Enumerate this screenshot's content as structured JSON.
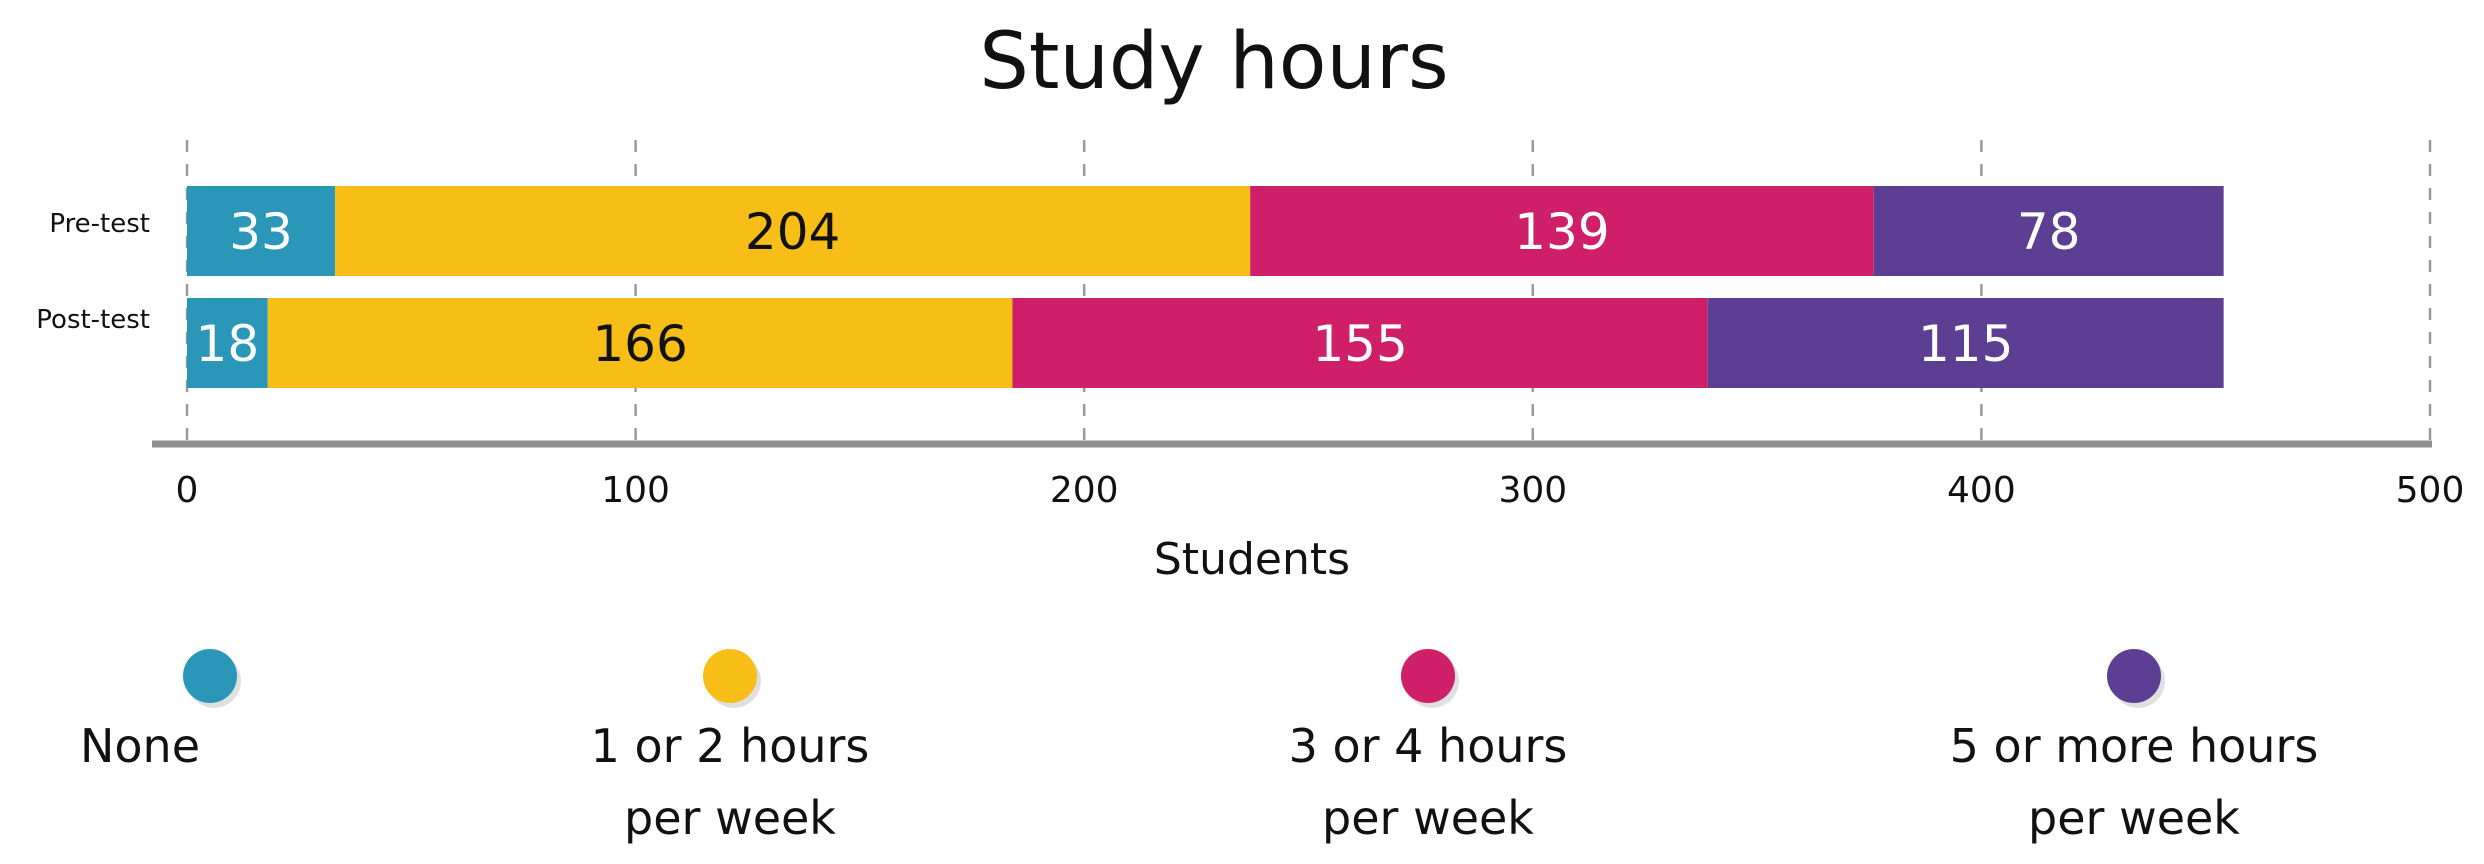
{
  "chart_data": {
    "type": "bar",
    "orientation": "horizontal",
    "stacked": true,
    "title": "Study hours",
    "xlabel": "Students",
    "ylabel": "",
    "xlim": [
      0,
      500
    ],
    "xticks": [
      0,
      100,
      200,
      300,
      400,
      500
    ],
    "xtick_labels": [
      "0",
      "100",
      "200",
      "300",
      "400",
      "500"
    ],
    "grid": "vertical dashed",
    "categories": [
      "Pre-test",
      "Post-test"
    ],
    "series": [
      {
        "name": "None",
        "color": "#2a97b8",
        "label_color": "#ffffff",
        "values": [
          33,
          18
        ]
      },
      {
        "name": "1 or 2 hours per week",
        "legend_lines": [
          "1 or 2 hours",
          "per week"
        ],
        "color": "#f8be18",
        "label_color": "#111111",
        "values": [
          204,
          166
        ]
      },
      {
        "name": "3 or 4 hours per week",
        "legend_lines": [
          "3 or 4 hours",
          "per week"
        ],
        "color": "#d01f69",
        "label_color": "#ffffff",
        "values": [
          139,
          155
        ]
      },
      {
        "name": "5 or more hours per week",
        "legend_lines": [
          "5 or more hours",
          "per week"
        ],
        "color": "#5c3f93",
        "label_color": "#ffffff",
        "values": [
          78,
          115
        ]
      }
    ],
    "legend_position": "bottom"
  }
}
